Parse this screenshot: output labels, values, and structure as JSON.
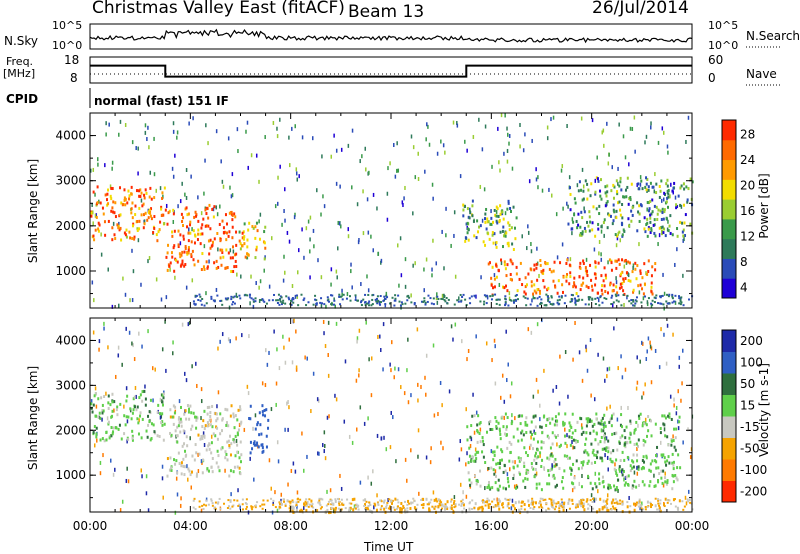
{
  "header": {
    "title": "Christmas Valley East (fitACF)",
    "beam": "Beam 13",
    "date": "26/Jul/2014"
  },
  "nsky_panel": {
    "left_label": "N.Sky",
    "left_ticks": [
      "10^5",
      "10^0"
    ],
    "right_label": "N.Search",
    "right_ticks": [
      "10^5",
      "10^0"
    ]
  },
  "freq_panel": {
    "left_label_line1": "Freq.",
    "left_label_line2": "[MHz]",
    "left_ticks": [
      "18",
      "8"
    ],
    "right_label": "Nave",
    "right_ticks": [
      "60",
      "0"
    ]
  },
  "cpid": {
    "label": "CPID",
    "value": "normal (fast) 151 IF"
  },
  "x_axis": {
    "title": "Time UT",
    "ticks": [
      "00:00",
      "04:00",
      "08:00",
      "12:00",
      "16:00",
      "20:00",
      "00:00"
    ]
  },
  "power_colorbar": {
    "title": "Power [dB]",
    "ticks": [
      "28",
      "24",
      "20",
      "16",
      "12",
      "8",
      "4"
    ]
  },
  "velocity_colorbar": {
    "title": "Velocity [m s-1]",
    "ticks": [
      "200",
      "100",
      "50",
      "15",
      "-15",
      "-50",
      "-100",
      "-200"
    ]
  },
  "colors": {
    "power_scale": [
      "#1f00d6",
      "#2a4bb8",
      "#2e7a5a",
      "#3a9a4a",
      "#9acd32",
      "#f2dc00",
      "#ff9a00",
      "#ff6a00",
      "#ff2a00"
    ],
    "velocity_scale": [
      "#1e2aa8",
      "#2f5fc4",
      "#2f6f3e",
      "#5fcf4a",
      "#c8c8c0",
      "#f5a300",
      "#ff7a00",
      "#ff2a00"
    ]
  },
  "chart_data": [
    {
      "type": "heatmap",
      "title": "",
      "ylabel": "Slant Range [km]",
      "xlabel": "Time UT",
      "xlim": [
        "00:00",
        "24:00"
      ],
      "ylim": [
        180,
        4500
      ],
      "y_ticks": [
        1000,
        2000,
        3000,
        4000
      ],
      "colorbar": {
        "label": "Power [dB]",
        "range": [
          0,
          30
        ]
      },
      "features": [
        {
          "time_start": 0.0,
          "time_end": 3.0,
          "range_start": 1700,
          "range_end": 2900,
          "power": 24
        },
        {
          "time_start": 3.0,
          "time_end": 5.8,
          "range_start": 1000,
          "range_end": 2500,
          "power": 26
        },
        {
          "time_start": 5.8,
          "time_end": 7.0,
          "range_start": 1300,
          "range_end": 2100,
          "power": 20
        },
        {
          "time_start": 14.8,
          "time_end": 17.0,
          "range_start": 1500,
          "range_end": 2600,
          "power": 12
        },
        {
          "time_start": 15.8,
          "time_end": 22.5,
          "range_start": 500,
          "range_end": 1300,
          "power": 26
        },
        {
          "time_start": 19.0,
          "time_end": 24.0,
          "range_start": 1800,
          "range_end": 3100,
          "power": 10
        }
      ]
    },
    {
      "type": "heatmap",
      "title": "",
      "ylabel": "Slant Range [km]",
      "xlabel": "Time UT",
      "xlim": [
        "00:00",
        "24:00"
      ],
      "ylim": [
        180,
        4500
      ],
      "y_ticks": [
        1000,
        2000,
        3000,
        4000
      ],
      "colorbar": {
        "label": "Velocity [m s-1]",
        "range": [
          -200,
          200
        ]
      },
      "features": [
        {
          "time_start": 0.0,
          "time_end": 3.0,
          "range_start": 1800,
          "range_end": 2900,
          "velocity": 0
        },
        {
          "time_start": 3.0,
          "time_end": 6.0,
          "range_start": 1000,
          "range_end": 2600,
          "velocity": -30
        },
        {
          "time_start": 6.3,
          "time_end": 7.1,
          "range_start": 1500,
          "range_end": 2600,
          "velocity": 75
        },
        {
          "time_start": 7.5,
          "time_end": 23.5,
          "range_start": 200,
          "range_end": 500,
          "velocity": -60
        },
        {
          "time_start": 15.0,
          "time_end": 23.5,
          "range_start": 700,
          "range_end": 2400,
          "velocity": 0
        }
      ]
    },
    {
      "type": "line",
      "title": "",
      "series": [
        {
          "name": "Freq.",
          "x": [
            0,
            3.0,
            3.0,
            15.0,
            15.0,
            24.0
          ],
          "y": [
            15,
            15,
            10,
            10,
            15,
            15
          ]
        }
      ],
      "ylim": [
        8,
        18
      ]
    }
  ]
}
